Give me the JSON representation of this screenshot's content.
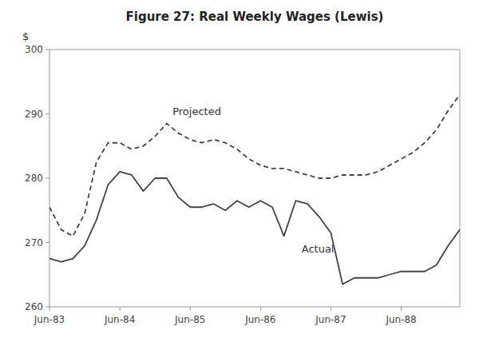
{
  "chart_data": {
    "type": "line",
    "title": "Figure 27: Real Weekly Wages (Lewis)",
    "ylabel": "$",
    "x": [
      0,
      2,
      4,
      6,
      8,
      10,
      12,
      14,
      16,
      18,
      20,
      22,
      24,
      26,
      28,
      30,
      32,
      34,
      36,
      38,
      40,
      42,
      44,
      46,
      48,
      50,
      52,
      54,
      56,
      58,
      60,
      62,
      64,
      66,
      68,
      70
    ],
    "series": [
      {
        "name": "Actual",
        "color": "#444444",
        "line_style": "solid",
        "values": [
          267.5,
          267.0,
          267.5,
          269.5,
          273.5,
          279.0,
          281.0,
          280.5,
          278.0,
          280.0,
          280.0,
          277.0,
          275.5,
          275.5,
          276.0,
          275.0,
          276.5,
          275.5,
          276.5,
          275.5,
          271.0,
          276.5,
          276.0,
          274.0,
          271.5,
          263.5,
          264.5,
          264.5,
          264.5,
          265.0,
          265.5,
          265.5,
          265.5,
          266.5,
          269.5,
          272.0
        ]
      },
      {
        "name": "Projected",
        "color": "#444444",
        "line_style": "dashed",
        "values": [
          275.5,
          272.0,
          271.0,
          274.5,
          282.5,
          285.5,
          285.5,
          284.5,
          285.0,
          286.5,
          288.5,
          287.0,
          286.0,
          285.5,
          286.0,
          285.5,
          284.5,
          283.0,
          282.0,
          281.5,
          281.5,
          281.0,
          280.5,
          280.0,
          280.0,
          280.5,
          280.5,
          280.5,
          281.0,
          282.0,
          283.0,
          284.0,
          285.5,
          287.5,
          290.5,
          293.0
        ]
      }
    ],
    "annotations": [
      {
        "text": "Projected",
        "x": 21,
        "y": 289.8
      },
      {
        "text": "Actual",
        "x": 43,
        "y": 268.5
      }
    ],
    "xlim": [
      0,
      70
    ],
    "xticks": [
      {
        "value": 0,
        "label": "Jun-83"
      },
      {
        "value": 12,
        "label": "Jun-84"
      },
      {
        "value": 24,
        "label": "Jun-85"
      },
      {
        "value": 36,
        "label": "Jun-86"
      },
      {
        "value": 48,
        "label": "Jun-87"
      },
      {
        "value": 60,
        "label": "Jun-88"
      }
    ],
    "ylim": [
      260,
      300
    ],
    "yticks": [
      260,
      270,
      280,
      290,
      300
    ],
    "grid": false
  }
}
